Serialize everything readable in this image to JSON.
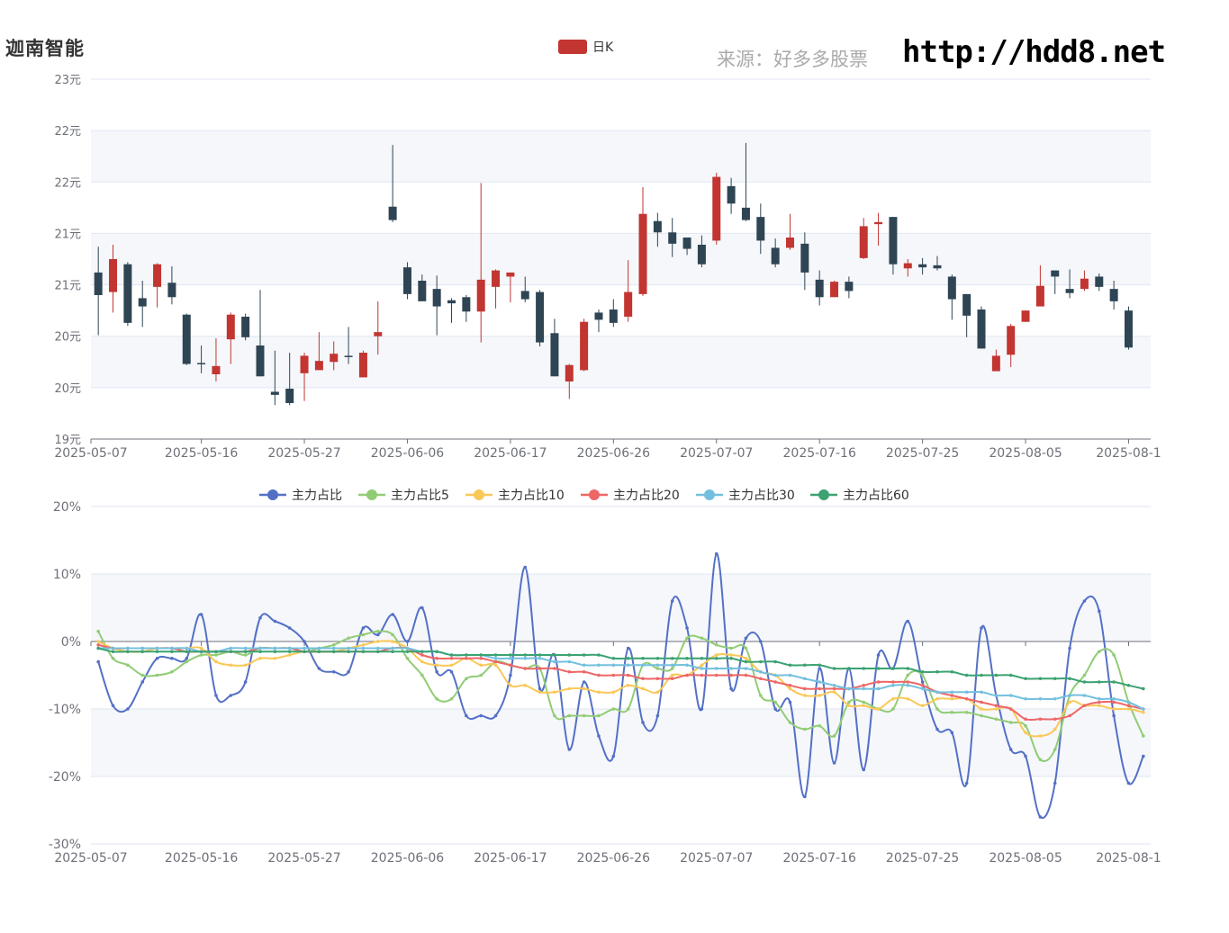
{
  "header": {
    "title": "迦南智能",
    "source": "来源：好多多股票",
    "url": "http://hdd8.net"
  },
  "colors": {
    "up": "#c23531",
    "down": "#2f4554",
    "grid": "#e0e6f1",
    "band": "#f5f7fb",
    "axis": "#6e7079",
    "series": [
      "#5470c6",
      "#91cc75",
      "#fac858",
      "#ee6666",
      "#73c0de",
      "#3ba272"
    ]
  },
  "kline_chart": {
    "legend": "日K",
    "y_tick_labels": [
      "23元",
      "22元",
      "22元",
      "21元",
      "21元",
      "20元",
      "20元",
      "19元"
    ],
    "x_tick_labels": [
      "2025-05-07",
      "2025-05-16",
      "2025-05-27",
      "2025-06-06",
      "2025-06-17",
      "2025-06-26",
      "2025-07-07",
      "2025-07-16",
      "2025-07-25",
      "2025-08-05",
      "2025-08-1"
    ]
  },
  "ratio_chart": {
    "y_tick_labels": [
      "20%",
      "10%",
      "0%",
      "-10%",
      "-20%",
      "-30%"
    ],
    "x_tick_labels": [
      "2025-05-07",
      "2025-05-16",
      "2025-05-27",
      "2025-06-06",
      "2025-06-17",
      "2025-06-26",
      "2025-07-07",
      "2025-07-16",
      "2025-07-25",
      "2025-08-05",
      "2025-08-1"
    ]
  },
  "chart_data": [
    {
      "type": "candlestick",
      "legend": [
        "日K"
      ],
      "ylim": [
        19.5,
        23
      ],
      "categories": [
        "2025-05-07",
        "2025-05-08",
        "2025-05-09",
        "2025-05-12",
        "2025-05-13",
        "2025-05-14",
        "2025-05-15",
        "2025-05-16",
        "2025-05-19",
        "2025-05-20",
        "2025-05-21",
        "2025-05-22",
        "2025-05-23",
        "2025-05-26",
        "2025-05-27",
        "2025-05-28",
        "2025-05-29",
        "2025-05-30",
        "2025-06-03",
        "2025-06-04",
        "2025-06-05",
        "2025-06-06",
        "2025-06-09",
        "2025-06-10",
        "2025-06-11",
        "2025-06-12",
        "2025-06-13",
        "2025-06-16",
        "2025-06-17",
        "2025-06-18",
        "2025-06-19",
        "2025-06-20",
        "2025-06-23",
        "2025-06-24",
        "2025-06-25",
        "2025-06-26",
        "2025-06-27",
        "2025-06-30",
        "2025-07-01",
        "2025-07-02",
        "2025-07-03",
        "2025-07-04",
        "2025-07-07",
        "2025-07-08",
        "2025-07-09",
        "2025-07-10",
        "2025-07-11",
        "2025-07-14",
        "2025-07-15",
        "2025-07-16",
        "2025-07-17",
        "2025-07-18",
        "2025-07-21",
        "2025-07-22",
        "2025-07-23",
        "2025-07-24",
        "2025-07-25",
        "2025-07-28",
        "2025-07-29",
        "2025-07-30",
        "2025-07-31",
        "2025-08-01",
        "2025-08-04",
        "2025-08-05",
        "2025-08-06",
        "2025-08-07",
        "2025-08-08",
        "2025-08-11",
        "2025-08-12",
        "2025-08-13",
        "2025-08-14",
        "2025-08-15"
      ],
      "ohlc": [
        [
          21.12,
          20.9,
          21.37,
          20.51
        ],
        [
          20.93,
          21.25,
          21.39,
          20.73
        ],
        [
          21.2,
          20.63,
          21.22,
          20.6
        ],
        [
          20.87,
          20.79,
          21.04,
          20.59
        ],
        [
          20.98,
          21.2,
          21.21,
          20.78
        ],
        [
          21.02,
          20.88,
          21.18,
          20.81
        ],
        [
          20.71,
          20.23,
          20.72,
          20.22
        ],
        [
          20.24,
          20.23,
          20.41,
          20.14
        ],
        [
          20.13,
          20.21,
          20.48,
          20.06
        ],
        [
          20.47,
          20.71,
          20.73,
          20.23
        ],
        [
          20.69,
          20.49,
          20.72,
          20.46
        ],
        [
          20.41,
          20.11,
          20.95,
          20.11
        ],
        [
          19.96,
          19.93,
          20.36,
          19.83
        ],
        [
          19.99,
          19.85,
          20.34,
          19.83
        ],
        [
          20.14,
          20.31,
          20.34,
          19.87
        ],
        [
          20.17,
          20.26,
          20.54,
          20.23
        ],
        [
          20.25,
          20.33,
          20.45,
          20.17
        ],
        [
          20.31,
          20.3,
          20.59,
          20.23
        ],
        [
          20.1,
          20.34,
          20.36,
          20.12
        ],
        [
          20.5,
          20.54,
          20.84,
          20.32
        ],
        [
          21.76,
          21.63,
          22.36,
          21.61
        ],
        [
          21.17,
          20.91,
          21.22,
          20.86
        ],
        [
          21.04,
          20.84,
          21.1,
          20.87
        ],
        [
          20.96,
          20.79,
          21.09,
          20.51
        ],
        [
          20.85,
          20.82,
          20.87,
          20.63
        ],
        [
          20.88,
          20.74,
          20.9,
          20.64
        ],
        [
          20.74,
          21.05,
          21.99,
          20.44
        ],
        [
          20.98,
          21.14,
          21.15,
          20.77
        ],
        [
          21.08,
          21.12,
          21.1,
          20.83
        ],
        [
          20.94,
          20.86,
          21.08,
          20.83
        ],
        [
          20.93,
          20.44,
          20.95,
          20.4
        ],
        [
          20.53,
          20.11,
          20.67,
          20.11
        ],
        [
          20.06,
          20.22,
          20.23,
          19.89
        ],
        [
          20.17,
          20.64,
          20.67,
          20.16
        ],
        [
          20.73,
          20.66,
          20.76,
          20.54
        ],
        [
          20.76,
          20.63,
          20.86,
          20.59
        ],
        [
          20.69,
          20.93,
          21.24,
          20.64
        ],
        [
          20.91,
          21.69,
          21.95,
          20.89
        ],
        [
          21.62,
          21.51,
          21.7,
          21.37
        ],
        [
          21.51,
          21.4,
          21.65,
          21.27
        ],
        [
          21.46,
          21.35,
          21.46,
          21.29
        ],
        [
          21.39,
          21.2,
          21.48,
          21.17
        ],
        [
          21.43,
          22.05,
          22.09,
          21.39
        ],
        [
          21.96,
          21.79,
          22.04,
          21.69
        ],
        [
          21.75,
          21.63,
          22.38,
          21.62
        ],
        [
          21.66,
          21.43,
          21.79,
          21.3
        ],
        [
          21.36,
          21.2,
          21.45,
          21.17
        ],
        [
          21.36,
          21.46,
          21.69,
          21.34
        ],
        [
          21.4,
          21.12,
          21.51,
          20.95
        ],
        [
          21.05,
          20.88,
          21.14,
          20.8
        ],
        [
          20.88,
          21.03,
          21.04,
          20.96
        ],
        [
          21.03,
          20.94,
          21.08,
          20.87
        ],
        [
          21.26,
          21.57,
          21.65,
          21.25
        ],
        [
          21.59,
          21.61,
          21.7,
          21.38
        ],
        [
          21.66,
          21.2,
          21.66,
          21.1
        ],
        [
          21.16,
          21.21,
          21.25,
          21.08
        ],
        [
          21.2,
          21.17,
          21.26,
          21.1
        ],
        [
          21.19,
          21.16,
          21.28,
          21.14
        ],
        [
          21.08,
          20.86,
          21.1,
          20.66
        ],
        [
          20.91,
          20.7,
          20.91,
          20.49
        ],
        [
          20.76,
          20.38,
          20.79,
          20.38
        ],
        [
          20.16,
          20.31,
          20.37,
          20.19
        ],
        [
          20.32,
          20.6,
          20.62,
          20.2
        ],
        [
          20.64,
          20.75,
          20.75,
          20.64
        ],
        [
          20.79,
          20.99,
          21.19,
          20.82
        ],
        [
          21.14,
          21.08,
          21.13,
          20.91
        ],
        [
          20.96,
          20.92,
          21.15,
          20.87
        ],
        [
          20.96,
          21.06,
          21.14,
          20.94
        ],
        [
          21.08,
          20.98,
          21.11,
          20.94
        ],
        [
          20.96,
          20.84,
          21.04,
          20.76
        ],
        [
          20.75,
          20.39,
          20.79,
          20.37
        ]
      ]
    },
    {
      "type": "line",
      "ylim": [
        -30,
        20
      ],
      "categories_ref": "same as candlestick",
      "series": [
        {
          "name": "主力占比",
          "values": [
            -3,
            -9.5,
            -10,
            -6,
            -2.5,
            -2.5,
            -2.5,
            4,
            -8,
            -8,
            -6,
            3.5,
            3,
            2,
            0,
            -4,
            -4.5,
            -4.5,
            2,
            1,
            4,
            0,
            5,
            -4.5,
            -4.5,
            -11,
            -11,
            -11,
            -5,
            11,
            -7,
            -2,
            -16,
            -6,
            -14,
            -17,
            -1,
            -12,
            -11,
            6,
            2,
            -10,
            13,
            -7,
            0.5,
            0,
            -10,
            -9,
            -23,
            -4,
            -18,
            -4,
            -19,
            -2,
            -4,
            3,
            -6,
            -13,
            -13.5,
            -21,
            2,
            -8,
            -16,
            -17,
            -26,
            -21,
            -1,
            6,
            4.5,
            -11,
            -21,
            -17
          ]
        },
        {
          "name": "主力占比5",
          "values": [
            1.5,
            -2.5,
            -3.5,
            -5,
            -5,
            -4.5,
            -3,
            -2,
            -2,
            -1.5,
            -2,
            -1,
            -1,
            -1,
            -1.5,
            -1,
            -0.5,
            0.5,
            1,
            1.5,
            1,
            -2.5,
            -5,
            -8.5,
            -8.5,
            -5.5,
            -5,
            -3,
            -3.5,
            -4,
            -4,
            -11,
            -11,
            -11,
            -11,
            -10,
            -10,
            -3.5,
            -4,
            -4,
            0.5,
            0.5,
            -0.5,
            -1,
            -1,
            -8,
            -9,
            -12,
            -13,
            -12.5,
            -14,
            -9,
            -9,
            -10,
            -10,
            -5,
            -5,
            -10,
            -10.5,
            -10.5,
            -11,
            -11.5,
            -12,
            -12.5,
            -17.5,
            -16,
            -8,
            -5,
            -1.5,
            -2,
            -9,
            -14
          ]
        },
        {
          "name": "主力占比10",
          "values": [
            0,
            -1,
            -1.5,
            -1.5,
            -1,
            -1,
            -1,
            -1,
            -3,
            -3.5,
            -3.5,
            -2.5,
            -2.5,
            -2,
            -1.5,
            -1.5,
            -1.5,
            -1,
            -0.5,
            0,
            0,
            -1,
            -3,
            -3.5,
            -3.5,
            -2.5,
            -3.5,
            -3.5,
            -6.5,
            -6.5,
            -7.5,
            -7.5,
            -7,
            -7,
            -7.5,
            -7.5,
            -6.5,
            -7,
            -7.5,
            -5,
            -5,
            -3.5,
            -2,
            -2,
            -2.5,
            -4.5,
            -5,
            -7,
            -8,
            -8,
            -7.5,
            -9.5,
            -9.5,
            -10,
            -8.5,
            -8.5,
            -9.5,
            -8.5,
            -8.5,
            -8.5,
            -10,
            -10,
            -10,
            -13.5,
            -14,
            -13,
            -9,
            -9.5,
            -9.5,
            -10,
            -10,
            -10.5
          ]
        },
        {
          "name": "主力占比20",
          "values": [
            -0.5,
            -1,
            -1,
            -1,
            -1,
            -1,
            -1.5,
            -1.5,
            -1.5,
            -1.5,
            -1.5,
            -1,
            -1,
            -1,
            -1.5,
            -1.5,
            -1.5,
            -1.5,
            -1.5,
            -1.5,
            -1,
            -1,
            -2,
            -2.5,
            -2.5,
            -2.5,
            -2.5,
            -3,
            -3.5,
            -4,
            -4,
            -4,
            -4.5,
            -4.5,
            -5,
            -5,
            -5,
            -5.5,
            -5.5,
            -5.5,
            -5,
            -5,
            -5,
            -5,
            -5,
            -5.5,
            -6,
            -6.5,
            -7,
            -7,
            -7,
            -7,
            -6.5,
            -6,
            -6,
            -6,
            -6.5,
            -7.5,
            -8,
            -8.5,
            -9,
            -9.5,
            -10,
            -11.5,
            -11.5,
            -11.5,
            -11,
            -9.5,
            -9,
            -9,
            -9.5,
            -10
          ]
        },
        {
          "name": "主力占比30",
          "values": [
            -1,
            -1,
            -1,
            -1,
            -1,
            -1,
            -1,
            -1.5,
            -1.5,
            -1,
            -1,
            -1,
            -1,
            -1,
            -1,
            -1,
            -1,
            -1,
            -1,
            -1,
            -1,
            -1,
            -1.5,
            -1.5,
            -2,
            -2,
            -2,
            -2.5,
            -2.5,
            -2.5,
            -2.5,
            -3,
            -3,
            -3.5,
            -3.5,
            -3.5,
            -3.5,
            -3.5,
            -3.5,
            -3.5,
            -3.5,
            -4,
            -4,
            -4,
            -4,
            -4.5,
            -5,
            -5,
            -5.5,
            -6,
            -6.5,
            -7,
            -7,
            -7,
            -6.5,
            -6.5,
            -7,
            -7.5,
            -7.5,
            -7.5,
            -7.5,
            -8,
            -8,
            -8.5,
            -8.5,
            -8.5,
            -8,
            -8,
            -8.5,
            -8.5,
            -9,
            -10
          ]
        },
        {
          "name": "主力占比60",
          "values": [
            -1,
            -1.5,
            -1.5,
            -1.5,
            -1.5,
            -1.5,
            -1.5,
            -1.5,
            -1.5,
            -1.5,
            -1.5,
            -1.5,
            -1.5,
            -1.5,
            -1.5,
            -1.5,
            -1.5,
            -1.5,
            -1.5,
            -1.5,
            -1.5,
            -1.5,
            -1.5,
            -1.5,
            -2,
            -2,
            -2,
            -2,
            -2,
            -2,
            -2,
            -2,
            -2,
            -2,
            -2,
            -2.5,
            -2.5,
            -2.5,
            -2.5,
            -2.5,
            -2.5,
            -2.5,
            -2.5,
            -2.5,
            -3,
            -3,
            -3,
            -3.5,
            -3.5,
            -3.5,
            -4,
            -4,
            -4,
            -4,
            -4,
            -4,
            -4.5,
            -4.5,
            -4.5,
            -5,
            -5,
            -5,
            -5,
            -5.5,
            -5.5,
            -5.5,
            -5.5,
            -6,
            -6,
            -6,
            -6.5,
            -7
          ]
        }
      ]
    }
  ]
}
